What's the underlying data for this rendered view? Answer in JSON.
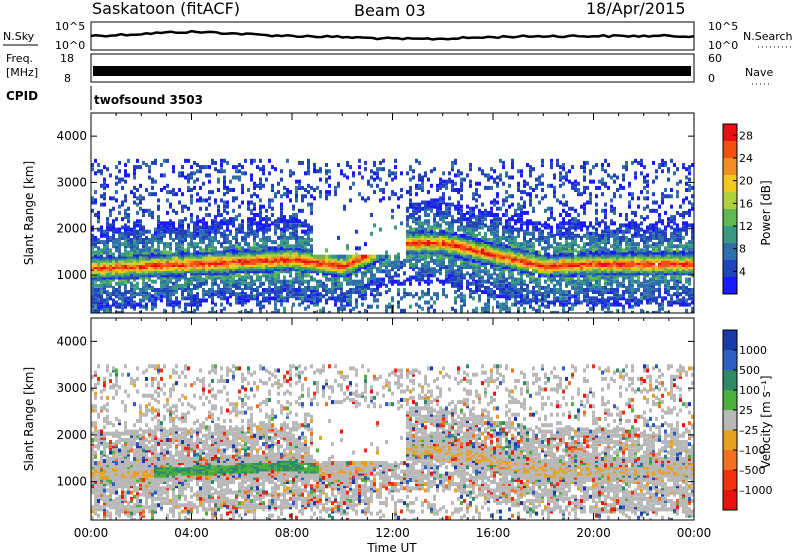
{
  "header": {
    "station": "Saskatoon (fitACF)",
    "beam": "Beam 03",
    "date": "18/Apr/2015"
  },
  "top_panels": {
    "nsky": {
      "left_label": "N.Sky",
      "left_ticks": [
        "10^5",
        "10^0"
      ],
      "right_label": "N.Search",
      "right_ticks": [
        "10^5",
        "10^0"
      ]
    },
    "freq": {
      "left_label_line1": "Freq.",
      "left_label_line2": "[MHz]",
      "left_ticks": [
        "18",
        "8"
      ],
      "right_label": "Nave",
      "right_ticks": [
        "60",
        "0"
      ]
    },
    "cpid": {
      "label": "CPID",
      "program": "twofsound 3503"
    }
  },
  "chart_data": [
    {
      "type": "heatmap",
      "quantity": "power",
      "ylabel": "Slant Range [km]",
      "xlabel": "Time UT",
      "xlim": [
        "00:00",
        "24:00"
      ],
      "ylim": [
        180,
        4500
      ],
      "x_ticks": [
        "00:00",
        "04:00",
        "08:00",
        "12:00",
        "16:00",
        "20:00",
        "00:00"
      ],
      "y_ticks": [
        1000,
        2000,
        3000,
        4000
      ],
      "colorbar": {
        "label": "Power [dB]",
        "range": [
          0,
          30
        ],
        "ticks": [
          4,
          8,
          12,
          16,
          20,
          24,
          28
        ],
        "colors": [
          "#1a1aff",
          "#2244bb",
          "#2e6eaa",
          "#3a9a80",
          "#60b850",
          "#b0d040",
          "#f0c820",
          "#f09020",
          "#f05010",
          "#e81010"
        ]
      },
      "main_band_km": [
        {
          "hour": 0,
          "range": 1150
        },
        {
          "hour": 2,
          "range": 1200
        },
        {
          "hour": 4,
          "range": 1250
        },
        {
          "hour": 6,
          "range": 1300
        },
        {
          "hour": 8,
          "range": 1350
        },
        {
          "hour": 10,
          "range": 1200
        },
        {
          "hour": 12,
          "range": 1700
        },
        {
          "hour": 14,
          "range": 1700
        },
        {
          "hour": 16,
          "range": 1450
        },
        {
          "hour": 18,
          "range": 1200
        },
        {
          "hour": 20,
          "range": 1250
        },
        {
          "hour": 22,
          "range": 1250
        },
        {
          "hour": 24,
          "range": 1250
        }
      ]
    },
    {
      "type": "heatmap",
      "quantity": "velocity",
      "ylabel": "Slant Range [km]",
      "xlabel": "Time UT",
      "xlim": [
        "00:00",
        "24:00"
      ],
      "ylim": [
        180,
        4500
      ],
      "x_ticks": [
        "00:00",
        "04:00",
        "08:00",
        "12:00",
        "16:00",
        "20:00",
        "00:00"
      ],
      "y_ticks": [
        1000,
        2000,
        3000,
        4000
      ],
      "colorbar": {
        "label": "Velocity [m s⁻¹]",
        "ticks": [
          "1000",
          "500",
          "100",
          "25",
          "–25",
          "–100",
          "–500",
          "–1000"
        ],
        "colors": [
          "#1a3aa8",
          "#2e5ebf",
          "#2f8a6a",
          "#4cae3c",
          "#b8b8b8",
          "#e8a020",
          "#f07020",
          "#f03010",
          "#e81010"
        ]
      }
    }
  ]
}
